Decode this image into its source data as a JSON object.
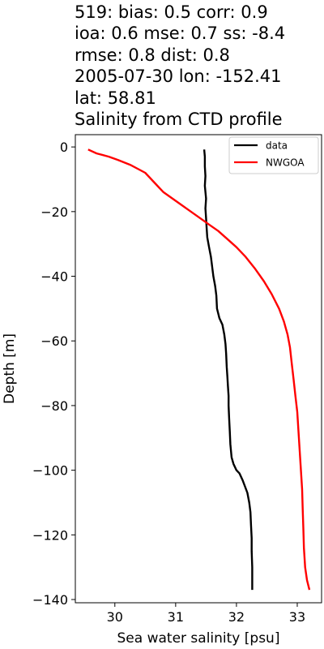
{
  "chart_data": {
    "type": "line",
    "title_lines": [
      "519: bias: 0.5  corr: 0.9",
      "ioa: 0.6  mse: 0.7  ss: -8.4",
      "rmse: 0.8  dist: 0.8",
      "2005-07-30 lon: -152.41",
      "lat: 58.81",
      "Salinity from CTD profile"
    ],
    "xlabel": "Sea water salinity [psu]",
    "ylabel": "Depth [m]",
    "xlim": [
      29.35,
      33.4
    ],
    "ylim": [
      -141.0,
      3.8
    ],
    "xticks": [
      30,
      31,
      32,
      33
    ],
    "xtick_labels": [
      "30",
      "31",
      "32",
      "33"
    ],
    "yticks": [
      0,
      -20,
      -40,
      -60,
      -80,
      -100,
      -120,
      -140
    ],
    "ytick_labels": [
      "0",
      "−20",
      "−40",
      "−60",
      "−80",
      "−100",
      "−120",
      "−140"
    ],
    "grid": false,
    "legend_position": "top-right",
    "series": [
      {
        "name": "data",
        "color": "#000000",
        "points": [
          [
            31.47,
            -0.8
          ],
          [
            31.48,
            -3
          ],
          [
            31.48,
            -6
          ],
          [
            31.49,
            -9
          ],
          [
            31.48,
            -12
          ],
          [
            31.5,
            -16
          ],
          [
            31.49,
            -19
          ],
          [
            31.5,
            -22
          ],
          [
            31.51,
            -25
          ],
          [
            31.52,
            -28
          ],
          [
            31.55,
            -31
          ],
          [
            31.58,
            -34
          ],
          [
            31.6,
            -37
          ],
          [
            31.62,
            -40
          ],
          [
            31.65,
            -43
          ],
          [
            31.67,
            -46
          ],
          [
            31.68,
            -50
          ],
          [
            31.72,
            -53
          ],
          [
            31.77,
            -55
          ],
          [
            31.8,
            -58
          ],
          [
            31.82,
            -61
          ],
          [
            31.83,
            -64
          ],
          [
            31.84,
            -68
          ],
          [
            31.85,
            -71
          ],
          [
            31.86,
            -74
          ],
          [
            31.87,
            -77
          ],
          [
            31.87,
            -80
          ],
          [
            31.88,
            -84
          ],
          [
            31.89,
            -88
          ],
          [
            31.9,
            -92
          ],
          [
            31.92,
            -96
          ],
          [
            31.95,
            -98
          ],
          [
            32.0,
            -100
          ],
          [
            32.05,
            -101
          ],
          [
            32.1,
            -103
          ],
          [
            32.14,
            -105
          ],
          [
            32.18,
            -107
          ],
          [
            32.21,
            -110
          ],
          [
            32.23,
            -113
          ],
          [
            32.24,
            -117
          ],
          [
            32.25,
            -121
          ],
          [
            32.25,
            -125
          ],
          [
            32.26,
            -130
          ],
          [
            32.26,
            -134
          ],
          [
            32.26,
            -137
          ]
        ]
      },
      {
        "name": "NWGOA",
        "color": "#ff0000",
        "points": [
          [
            29.56,
            -0.8
          ],
          [
            29.7,
            -2
          ],
          [
            29.9,
            -3
          ],
          [
            30.05,
            -4
          ],
          [
            30.25,
            -5.5
          ],
          [
            30.4,
            -7
          ],
          [
            30.5,
            -8
          ],
          [
            30.6,
            -10
          ],
          [
            30.7,
            -12
          ],
          [
            30.8,
            -14
          ],
          [
            30.95,
            -16
          ],
          [
            31.1,
            -18
          ],
          [
            31.25,
            -20
          ],
          [
            31.4,
            -22
          ],
          [
            31.55,
            -24
          ],
          [
            31.7,
            -26
          ],
          [
            31.85,
            -28.5
          ],
          [
            32.0,
            -31
          ],
          [
            32.15,
            -34
          ],
          [
            32.3,
            -37.5
          ],
          [
            32.45,
            -41.5
          ],
          [
            32.58,
            -45.5
          ],
          [
            32.7,
            -50
          ],
          [
            32.78,
            -54
          ],
          [
            32.84,
            -58
          ],
          [
            32.88,
            -62
          ],
          [
            32.91,
            -67
          ],
          [
            32.94,
            -72
          ],
          [
            32.97,
            -77
          ],
          [
            33.0,
            -82
          ],
          [
            33.02,
            -88
          ],
          [
            33.04,
            -94
          ],
          [
            33.06,
            -100
          ],
          [
            33.08,
            -106
          ],
          [
            33.09,
            -112
          ],
          [
            33.1,
            -118
          ],
          [
            33.11,
            -124
          ],
          [
            33.13,
            -130
          ],
          [
            33.16,
            -134
          ],
          [
            33.2,
            -137
          ]
        ]
      }
    ]
  }
}
